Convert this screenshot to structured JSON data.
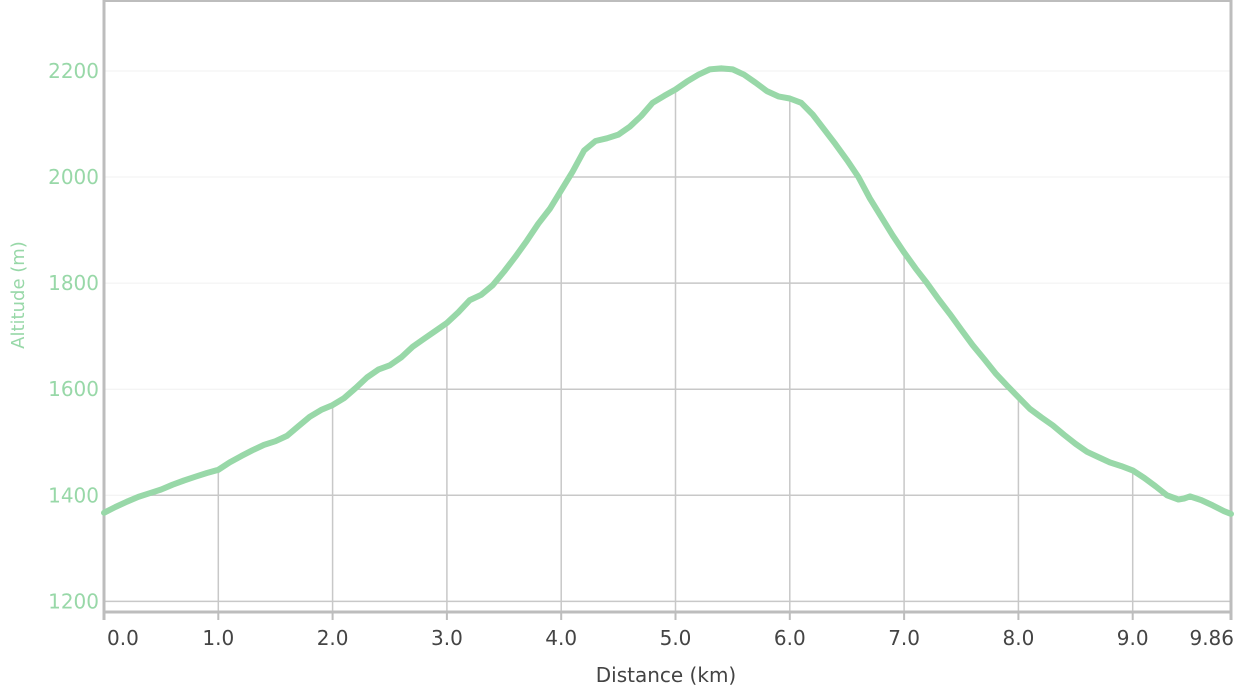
{
  "chart_data": {
    "type": "line",
    "title": "",
    "xlabel": "Distance (km)",
    "ylabel": "Altitude (m)",
    "xlim": [
      0,
      9.86
    ],
    "ylim": [
      1180,
      2330
    ],
    "x_ticks": [
      "0.0",
      "1.0",
      "2.0",
      "3.0",
      "4.0",
      "5.0",
      "6.0",
      "7.0",
      "8.0",
      "9.0",
      "9.86"
    ],
    "y_ticks": [
      "1200",
      "1400",
      "1600",
      "1800",
      "2000",
      "2200"
    ],
    "grid": true,
    "legend": "none",
    "colors": {
      "line": "#98d8a8",
      "y_axis_text": "#98d8a8",
      "x_axis_text": "#444444",
      "grid": "#c8c8c8",
      "axis": "#bdbdbd"
    },
    "series": [
      {
        "x": [
          0.0,
          0.1,
          0.2,
          0.3,
          0.4,
          0.5,
          0.6,
          0.7,
          0.8,
          0.9,
          1.0,
          1.1,
          1.2,
          1.3,
          1.4,
          1.5,
          1.6,
          1.7,
          1.8,
          1.9,
          2.0,
          2.1,
          2.2,
          2.3,
          2.4,
          2.5,
          2.6,
          2.7,
          2.8,
          2.9,
          3.0,
          3.1,
          3.2,
          3.3,
          3.4,
          3.5,
          3.6,
          3.7,
          3.8,
          3.9,
          4.0,
          4.1,
          4.2,
          4.3,
          4.4,
          4.5,
          4.6,
          4.7,
          4.8,
          4.9,
          5.0,
          5.1,
          5.2,
          5.3,
          5.4,
          5.5,
          5.6,
          5.7,
          5.8,
          5.9,
          6.0,
          6.1,
          6.2,
          6.3,
          6.4,
          6.5,
          6.6,
          6.7,
          6.8,
          6.9,
          7.0,
          7.1,
          7.2,
          7.3,
          7.4,
          7.5,
          7.6,
          7.7,
          7.8,
          7.9,
          8.0,
          8.1,
          8.2,
          8.3,
          8.4,
          8.5,
          8.6,
          8.7,
          8.8,
          8.9,
          9.0,
          9.1,
          9.2,
          9.3,
          9.4,
          9.45,
          9.5,
          9.6,
          9.7,
          9.8,
          9.86
        ],
        "y": [
          1367,
          1378,
          1388,
          1397,
          1404,
          1411,
          1420,
          1428,
          1435,
          1442,
          1448,
          1462,
          1474,
          1485,
          1495,
          1502,
          1512,
          1530,
          1548,
          1561,
          1570,
          1583,
          1602,
          1622,
          1637,
          1645,
          1660,
          1680,
          1695,
          1710,
          1725,
          1745,
          1768,
          1778,
          1796,
          1822,
          1850,
          1880,
          1912,
          1940,
          1975,
          2010,
          2050,
          2068,
          2073,
          2080,
          2095,
          2115,
          2140,
          2153,
          2165,
          2180,
          2193,
          2203,
          2205,
          2203,
          2193,
          2178,
          2162,
          2152,
          2148,
          2140,
          2118,
          2090,
          2062,
          2032,
          2000,
          1960,
          1925,
          1890,
          1858,
          1828,
          1800,
          1770,
          1742,
          1712,
          1683,
          1657,
          1630,
          1607,
          1585,
          1563,
          1547,
          1532,
          1514,
          1497,
          1482,
          1472,
          1462,
          1455,
          1447,
          1433,
          1417,
          1400,
          1392,
          1394,
          1398,
          1391,
          1381,
          1370,
          1365
        ]
      }
    ]
  }
}
